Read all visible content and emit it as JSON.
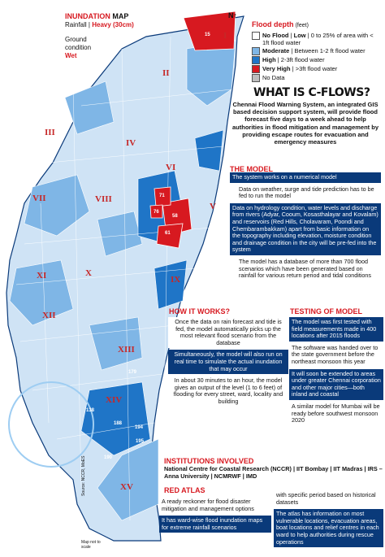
{
  "header": {
    "title_a": "INUNDATION",
    "title_b": "MAP",
    "rain_label": "Rainfall",
    "rain_value": "Heavy (30cm)",
    "ground_label": "Ground condition",
    "ground_value": "Wet",
    "north": "N"
  },
  "legend": {
    "title": "Flood depth",
    "unit": "(feet)",
    "rows": [
      {
        "level": "No Flood",
        "desc": "Low",
        "desc2": "0 to 25% of area with < 1ft flood water",
        "color": "#ffffff"
      },
      {
        "level": "",
        "desc": "Moderate",
        "desc2": "Between 1-2 ft flood water",
        "color": "#7fb6e6"
      },
      {
        "level": "",
        "desc": "High",
        "desc2": "2-3ft flood water",
        "color": "#1f75c7"
      },
      {
        "level": "Very High",
        "desc": "",
        "desc2": ">3ft flood water",
        "color": "#d71920"
      },
      {
        "level": "No Data",
        "desc": "",
        "desc2": "",
        "color": "#bdbdbd"
      }
    ]
  },
  "what": {
    "title": "WHAT IS C-FLOWS?",
    "body": "Chennai Flood Warning System, an integrated GIS based decision support system, will provide flood forecast five days to a week ahead to help authorities in flood mitigation and management by providing escape routes for evacuation and emergency measures"
  },
  "model": {
    "heading": "THE MODEL",
    "items": [
      "The system works on a numerical model",
      "Data on weather, surge and tide prediction has to be fed to run the model",
      "Data on hydrology condition, water levels and discharge from rivers (Adyar, Cooum, Kosasthalayar and Kovalam) and reservoirs (Red Hills, Cholavaram, Poondi and Chembarambakkam) apart from basic information on the topography including elevation, moisture condition and drainage condition in the city will be pre-fed into the system",
      "The model has a database of more than 700 flood scenarios which have been generated based on rainfall for various return period and tidal conditions"
    ]
  },
  "how": {
    "heading": "HOW IT WORKS?",
    "items": [
      "Once the data on rain forecast and tide is fed, the model automatically picks up the most relevant flood scenario from the database",
      "Simultaneously, the model will also run on real time to simulate the actual inundation that may occur",
      "In about 30 minutes to an hour, the model gives an output of the level (1 to 6 feet) of flooding for every street, ward, locality and building"
    ]
  },
  "testing": {
    "heading": "TESTING OF MODEL",
    "items": [
      "The model was first tested with field measurements made in 400 locations after 2015 floods",
      "The software was handed over to the state government before the northeast monsoon this year",
      "It will soon be extended to areas under greater Chennai corporation and other major cities—both inland and coastal",
      "A similar model for Mumbai will be ready before southwest monsoon 2020"
    ]
  },
  "institutions": {
    "heading": "INSTITUTIONS INVOLVED",
    "body": "National Centre for Coastal Research (NCCR) | IIT Bombay | IIT Madras | IRS – Anna University | NCMRWF | IMD"
  },
  "atlas": {
    "heading": "RED ATLAS",
    "items_left": [
      "A ready reckoner for flood disaster mitigation and management options",
      "It has ward-wise flood inundation maps for extreme rainfall scenarios"
    ],
    "items_right_intro": "with specific period based on historical datasets",
    "items_right": [
      "The atlas has information on most vulnerable locations, evacuation areas, boat locations and relief centres in each ward to help authorities during rescue operations"
    ]
  },
  "map": {
    "source": "Source: NCCR, MoES",
    "not_to_scale": "Map not to scale",
    "zones": [
      "I",
      "II",
      "III",
      "IV",
      "V",
      "VI",
      "VII",
      "VIII",
      "IX",
      "X",
      "XI",
      "XII",
      "XIII",
      "XIV",
      "XV"
    ],
    "wards": [
      "15",
      "71",
      "76",
      "58",
      "61",
      "138",
      "188",
      "190",
      "194",
      "195",
      "179"
    ]
  },
  "colors": {
    "accent_red": "#d71920",
    "navy": "#0a3a7a",
    "map_light": "#cfe3f5",
    "map_mid": "#7fb6e6",
    "map_dark": "#1f75c7"
  }
}
